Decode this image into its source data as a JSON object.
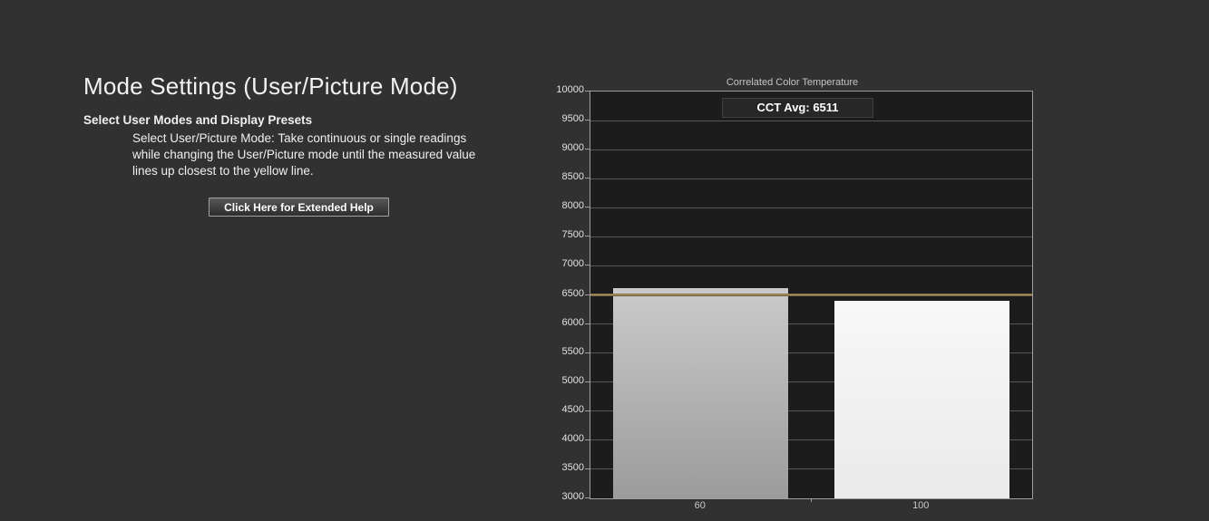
{
  "left_panel": {
    "title": "Mode Settings (User/Picture Mode)",
    "subtitle": "Select User Modes and Display Presets",
    "instructions": "Select User/Picture Mode: Take continuous or single readings while changing the User/Picture mode until the measured value lines up closest to the yellow line.",
    "help_button_label": "Click Here for Extended Help"
  },
  "chart_data": {
    "type": "bar",
    "title": "Correlated Color Temperature",
    "annotation": "CCT Avg: 6511",
    "cct_avg": 6511,
    "categories": [
      "60",
      "100"
    ],
    "values": [
      6610,
      6405
    ],
    "ylim": [
      3000,
      10000
    ],
    "ytick_step": 500,
    "grid": true,
    "target_line": {
      "value": 6500,
      "color_top": "#6a5a3a",
      "color_mid": "#bf9d62",
      "color_bottom": "#514430"
    },
    "bar_fills": [
      {
        "top": "#cacaca",
        "bottom": "#9c9c9c"
      },
      {
        "top": "#f8f8f8",
        "bottom": "#eaeaea"
      }
    ],
    "colors": {
      "plot_background": "#1c1c1c",
      "page_background": "#313131",
      "gridline": "#565656",
      "axis_border": "#9e9e9e"
    }
  }
}
